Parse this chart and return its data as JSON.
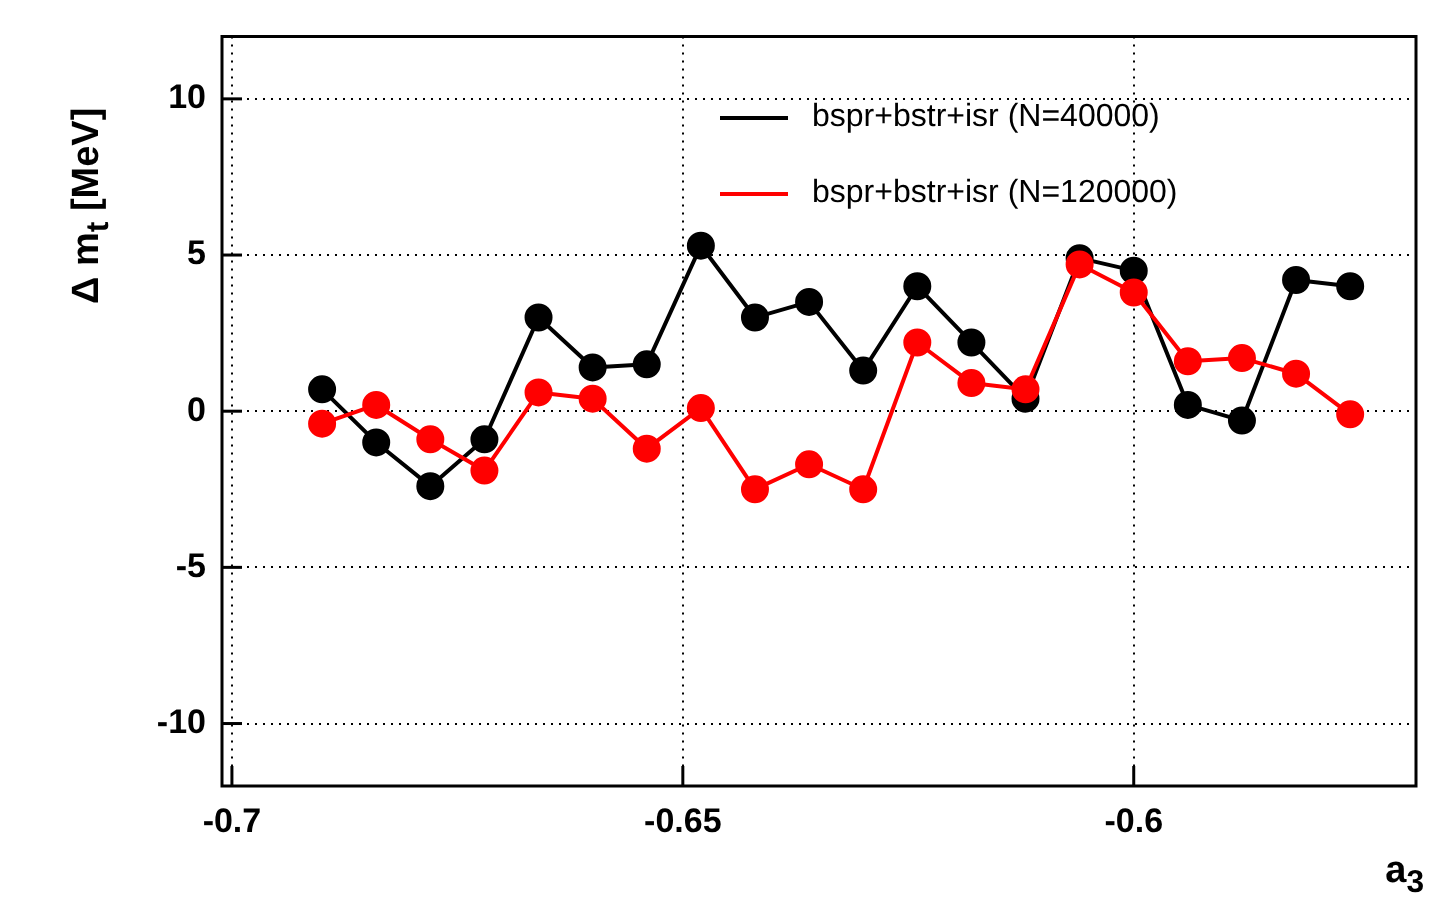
{
  "chart_data": {
    "type": "line",
    "xlabel": "a$_{3}$",
    "ylabel": "Δ m$_{t}$ [MeV]",
    "x": [
      -0.69,
      -0.684,
      -0.678,
      -0.672,
      -0.666,
      -0.66,
      -0.654,
      -0.648,
      -0.642,
      -0.636,
      -0.63,
      -0.624,
      -0.618,
      -0.612,
      -0.606,
      -0.6,
      -0.594,
      -0.588,
      -0.582,
      -0.576
    ],
    "series": [
      {
        "name": "bspr+bstr+isr (N=40000)",
        "color": "#000000",
        "values": [
          0.7,
          -1.0,
          -2.4,
          -0.9,
          3.0,
          1.4,
          1.5,
          5.3,
          3.0,
          3.5,
          1.3,
          4.0,
          2.2,
          0.4,
          4.9,
          4.5,
          0.2,
          -0.3,
          4.2,
          4.0
        ]
      },
      {
        "name": "bspr+bstr+isr (N=120000)",
        "color": "#ff0000",
        "values": [
          -0.4,
          0.2,
          -0.9,
          -1.9,
          0.6,
          0.4,
          -1.2,
          0.1,
          -2.5,
          -1.7,
          -2.5,
          2.2,
          0.9,
          0.7,
          4.7,
          3.8,
          1.6,
          1.7,
          1.2,
          -0.1
        ]
      }
    ],
    "xlim": [
      -0.7011,
      -0.5687
    ],
    "xticks": [
      -0.7,
      -0.65,
      -0.6
    ],
    "ylim": [
      -12,
      12
    ],
    "yticks": [
      -10,
      -5,
      0,
      5,
      10
    ],
    "grid": true,
    "legend": "top right",
    "marker": "circle",
    "line_style": "solid"
  }
}
